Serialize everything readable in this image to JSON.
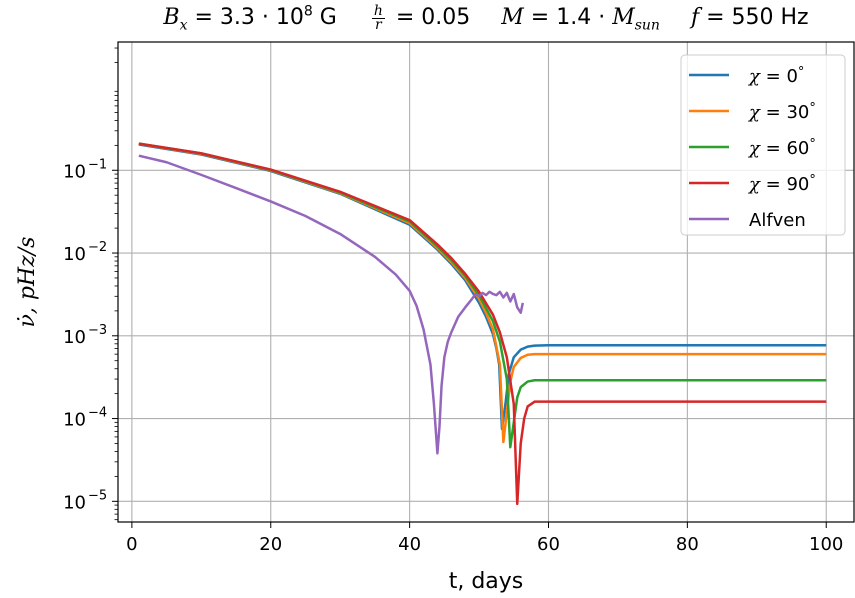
{
  "chart_data": {
    "type": "line",
    "title": {
      "bx_sym": "B",
      "bx_sub": "x",
      "bx_eq": " = 3.3 · 10",
      "bx_exp": "8",
      "bx_unit": " G",
      "hr_num": "h",
      "hr_den": "r",
      "hr_val": " = 0.05",
      "m_sym": "M",
      "m_eq": " = 1.4 · ",
      "m_sym2": "M",
      "m_sub": "sun",
      "f_sym": "f",
      "f_val": " = 550 Hz"
    },
    "xlabel": "t, days",
    "ylabel": "ν̇, pHz/s",
    "xlim": [
      -2,
      104
    ],
    "ylim_log10": [
      -5.25,
      0.55
    ],
    "yscale": "log",
    "xticks": [
      0,
      20,
      40,
      60,
      80,
      100
    ],
    "yticks": [
      {
        "base": "10",
        "exp": "−5",
        "value": 1e-05
      },
      {
        "base": "10",
        "exp": "−4",
        "value": 0.0001
      },
      {
        "base": "10",
        "exp": "−3",
        "value": 0.001
      },
      {
        "base": "10",
        "exp": "−2",
        "value": 0.01
      },
      {
        "base": "10",
        "exp": "−1",
        "value": 0.1
      }
    ],
    "grid": true,
    "legend_position": "top-right",
    "series": [
      {
        "name": "χ = 0°",
        "legend_sym": "χ",
        "legend_val": " = 0",
        "legend_deg": "°",
        "color": "#1f77b4",
        "x": [
          1,
          10,
          20,
          30,
          40,
          44,
          46,
          48,
          50,
          51,
          52,
          52.5,
          52.9,
          53.3,
          53.8,
          54.3,
          55,
          56,
          57,
          58,
          60,
          100
        ],
        "y": [
          0.205,
          0.155,
          0.098,
          0.052,
          0.022,
          0.011,
          0.0074,
          0.0047,
          0.0025,
          0.0017,
          0.00105,
          0.0007,
          0.00045,
          7.5e-05,
          0.00015,
          0.00035,
          0.00055,
          0.00068,
          0.00074,
          0.00076,
          0.00077,
          0.00077
        ]
      },
      {
        "name": "χ = 30°",
        "legend_sym": "χ",
        "legend_val": " = 30",
        "legend_deg": "°",
        "color": "#ff7f0e",
        "x": [
          1,
          10,
          20,
          30,
          40,
          44,
          46,
          48,
          50,
          51,
          52,
          53,
          53.5,
          54,
          54.5,
          55,
          56,
          57,
          58,
          60,
          100
        ],
        "y": [
          0.208,
          0.158,
          0.1,
          0.053,
          0.023,
          0.0115,
          0.0078,
          0.005,
          0.0028,
          0.0019,
          0.0012,
          0.00045,
          5.2e-05,
          0.00012,
          0.00028,
          0.00042,
          0.00054,
          0.00059,
          0.0006,
          0.0006,
          0.0006
        ]
      },
      {
        "name": "χ = 60°",
        "legend_sym": "χ",
        "legend_val": " = 60",
        "legend_deg": "°",
        "color": "#2ca02c",
        "x": [
          1,
          10,
          20,
          30,
          40,
          44,
          46,
          48,
          50,
          52,
          53,
          54,
          54.5,
          55,
          55.5,
          56,
          57,
          58,
          60,
          100
        ],
        "y": [
          0.21,
          0.16,
          0.101,
          0.054,
          0.024,
          0.012,
          0.0082,
          0.0053,
          0.0031,
          0.0015,
          0.00085,
          0.0003,
          4.5e-05,
          9e-05,
          0.00018,
          0.00024,
          0.00028,
          0.00029,
          0.00029,
          0.00029
        ]
      },
      {
        "name": "χ = 90°",
        "legend_sym": "χ",
        "legend_val": " = 90",
        "legend_deg": "°",
        "color": "#d62728",
        "x": [
          1,
          10,
          20,
          30,
          40,
          44,
          46,
          48,
          50,
          52,
          53,
          54,
          55,
          55.5,
          56,
          56.5,
          57,
          58,
          60,
          100
        ],
        "y": [
          0.21,
          0.16,
          0.102,
          0.055,
          0.025,
          0.0127,
          0.0087,
          0.0056,
          0.0034,
          0.0018,
          0.0011,
          0.00055,
          0.00015,
          9.3e-06,
          5e-05,
          0.0001,
          0.00014,
          0.00016,
          0.00016,
          0.00016
        ]
      },
      {
        "name": "Alfven",
        "legend_sym": "",
        "legend_val": "Alfven",
        "legend_deg": "",
        "color": "#9467bd",
        "x": [
          1,
          5,
          10,
          15,
          20,
          25,
          30,
          35,
          38,
          40,
          41,
          42,
          43,
          43.5,
          44,
          44.3,
          44.6,
          45,
          45.5,
          46,
          47,
          48,
          49,
          49.5,
          50,
          50.5,
          51,
          51.5,
          52,
          52.5,
          53,
          53.5,
          54,
          54.5,
          55,
          55.5,
          56,
          56.3
        ],
        "y": [
          0.15,
          0.125,
          0.088,
          0.061,
          0.042,
          0.028,
          0.017,
          0.009,
          0.0055,
          0.0035,
          0.0023,
          0.0012,
          0.00045,
          0.00015,
          3.8e-05,
          8e-05,
          0.00025,
          0.00055,
          0.00085,
          0.0011,
          0.0017,
          0.0022,
          0.0028,
          0.0032,
          0.003,
          0.0033,
          0.0031,
          0.0034,
          0.0032,
          0.0031,
          0.0034,
          0.0029,
          0.0033,
          0.0026,
          0.0032,
          0.0022,
          0.0019,
          0.0025
        ]
      }
    ]
  }
}
